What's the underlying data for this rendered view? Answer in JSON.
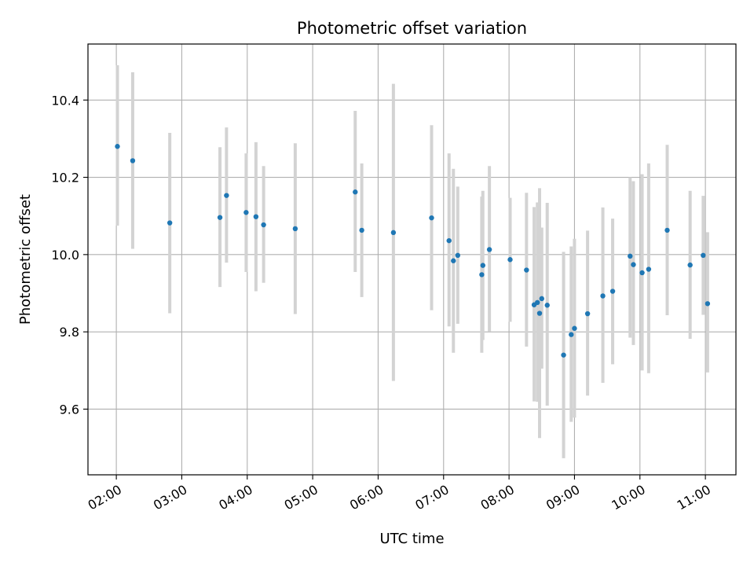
{
  "chart_data": {
    "type": "scatter",
    "title": "Photometric offset variation",
    "xlabel": "UTC time",
    "ylabel": "Photometric offset",
    "xlim": [
      "01:34",
      "11:28"
    ],
    "ylim": [
      9.43,
      10.545
    ],
    "x_ticks": [
      "02:00",
      "03:00",
      "04:00",
      "05:00",
      "06:00",
      "07:00",
      "08:00",
      "09:00",
      "10:00",
      "11:00"
    ],
    "y_ticks": [
      9.6,
      9.8,
      10.0,
      10.2,
      10.4
    ],
    "y_tick_labels": [
      "9.6",
      "9.8",
      "10.0",
      "10.2",
      "10.4"
    ],
    "grid": true,
    "colors": {
      "point": "#1f77b4",
      "errorbar": "#d3d3d3",
      "grid": "#b0b0b0",
      "axis": "#000000"
    },
    "points": [
      {
        "t": "02:01",
        "y": 10.28,
        "lo": 10.075,
        "hi": 10.49
      },
      {
        "t": "02:15",
        "y": 10.243,
        "lo": 10.015,
        "hi": 10.472
      },
      {
        "t": "02:49",
        "y": 10.082,
        "lo": 9.848,
        "hi": 10.315
      },
      {
        "t": "03:35",
        "y": 10.096,
        "lo": 9.916,
        "hi": 10.278
      },
      {
        "t": "03:41",
        "y": 10.153,
        "lo": 9.979,
        "hi": 10.329
      },
      {
        "t": "03:59",
        "y": 10.109,
        "lo": 9.955,
        "hi": 10.262
      },
      {
        "t": "04:08",
        "y": 10.098,
        "lo": 9.905,
        "hi": 10.291
      },
      {
        "t": "04:15",
        "y": 10.077,
        "lo": 9.927,
        "hi": 10.229
      },
      {
        "t": "04:44",
        "y": 10.067,
        "lo": 9.846,
        "hi": 10.288
      },
      {
        "t": "05:39",
        "y": 10.162,
        "lo": 9.955,
        "hi": 10.372
      },
      {
        "t": "05:45",
        "y": 10.063,
        "lo": 9.89,
        "hi": 10.236
      },
      {
        "t": "06:14",
        "y": 10.057,
        "lo": 9.673,
        "hi": 10.442
      },
      {
        "t": "06:49",
        "y": 10.095,
        "lo": 9.856,
        "hi": 10.335
      },
      {
        "t": "07:05",
        "y": 10.036,
        "lo": 9.814,
        "hi": 10.262
      },
      {
        "t": "07:09",
        "y": 9.984,
        "lo": 9.746,
        "hi": 10.222
      },
      {
        "t": "07:13",
        "y": 9.998,
        "lo": 9.821,
        "hi": 10.176
      },
      {
        "t": "07:35",
        "y": 9.948,
        "lo": 9.746,
        "hi": 10.15
      },
      {
        "t": "07:36",
        "y": 9.972,
        "lo": 9.779,
        "hi": 10.165
      },
      {
        "t": "07:42",
        "y": 10.013,
        "lo": 9.801,
        "hi": 10.229
      },
      {
        "t": "08:01",
        "y": 9.987,
        "lo": 9.826,
        "hi": 10.147
      },
      {
        "t": "08:16",
        "y": 9.96,
        "lo": 9.762,
        "hi": 10.16
      },
      {
        "t": "08:23",
        "y": 9.87,
        "lo": 9.62,
        "hi": 10.123
      },
      {
        "t": "08:26",
        "y": 9.876,
        "lo": 9.619,
        "hi": 10.135
      },
      {
        "t": "08:28",
        "y": 9.848,
        "lo": 9.525,
        "hi": 10.172
      },
      {
        "t": "08:30",
        "y": 9.886,
        "lo": 9.705,
        "hi": 10.07
      },
      {
        "t": "08:35",
        "y": 9.869,
        "lo": 9.609,
        "hi": 10.134
      },
      {
        "t": "08:50",
        "y": 9.74,
        "lo": 9.473,
        "hi": 10.007
      },
      {
        "t": "08:57",
        "y": 9.793,
        "lo": 9.567,
        "hi": 10.021
      },
      {
        "t": "09:00",
        "y": 9.809,
        "lo": 9.578,
        "hi": 10.041
      },
      {
        "t": "09:12",
        "y": 9.847,
        "lo": 9.635,
        "hi": 10.062
      },
      {
        "t": "09:26",
        "y": 9.893,
        "lo": 9.668,
        "hi": 10.122
      },
      {
        "t": "09:35",
        "y": 9.905,
        "lo": 9.716,
        "hi": 10.093
      },
      {
        "t": "09:51",
        "y": 9.996,
        "lo": 9.785,
        "hi": 10.2
      },
      {
        "t": "09:54",
        "y": 9.974,
        "lo": 9.766,
        "hi": 10.19
      },
      {
        "t": "10:02",
        "y": 9.953,
        "lo": 9.7,
        "hi": 10.208
      },
      {
        "t": "10:08",
        "y": 9.962,
        "lo": 9.693,
        "hi": 10.236
      },
      {
        "t": "10:25",
        "y": 10.063,
        "lo": 9.843,
        "hi": 10.284
      },
      {
        "t": "10:46",
        "y": 9.973,
        "lo": 9.782,
        "hi": 10.165
      },
      {
        "t": "10:58",
        "y": 9.998,
        "lo": 9.844,
        "hi": 10.152
      },
      {
        "t": "11:02",
        "y": 9.873,
        "lo": 9.695,
        "hi": 10.058
      }
    ]
  }
}
